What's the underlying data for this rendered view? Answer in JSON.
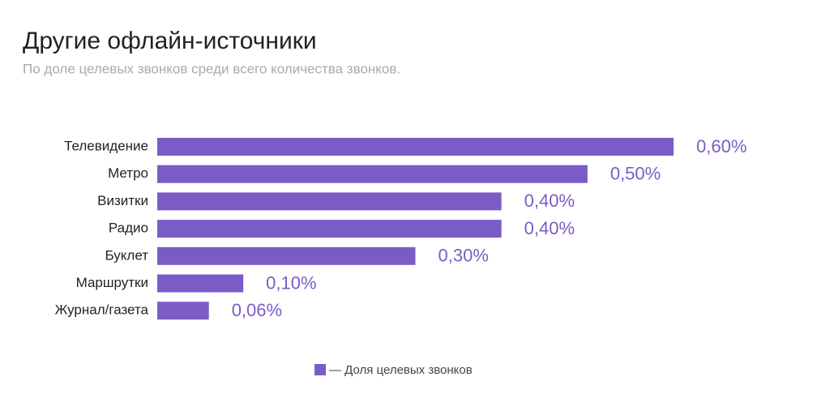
{
  "chart_data": {
    "type": "bar",
    "orientation": "horizontal",
    "title": "Другие офлайн-источники",
    "subtitle": "По доле целевых звонков среди всего количества звонков.",
    "categories": [
      "Телевидение",
      "Метро",
      "Визитки",
      "Радио",
      "Буклет",
      "Маршрутки",
      "Журнал/газета"
    ],
    "series": [
      {
        "name": "— Доля целевых звонков",
        "color": "#7b5cc6",
        "values": [
          0.6,
          0.5,
          0.4,
          0.4,
          0.3,
          0.1,
          0.06
        ],
        "value_labels": [
          "0,60%",
          "0,50%",
          "0,40%",
          "0,40%",
          "0,30%",
          "0,10%",
          "0,06%"
        ]
      }
    ]
  }
}
